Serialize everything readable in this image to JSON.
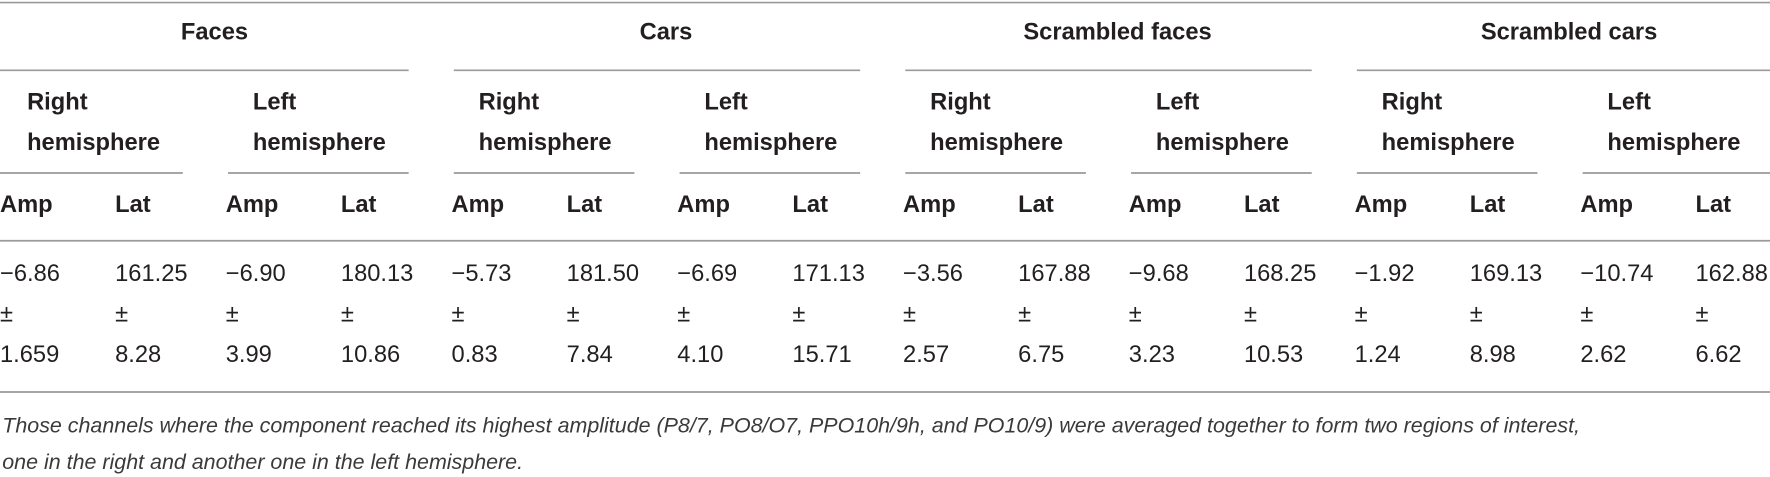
{
  "table": {
    "groups": [
      {
        "name": "Faces",
        "hemispheres": [
          {
            "label_lines": [
              "Right",
              "hemisphere"
            ],
            "columns": [
              "Amp",
              "Lat"
            ],
            "cells": [
              {
                "mean": "−6.86",
                "pm": "±",
                "sd": "1.659"
              },
              {
                "mean": "161.25",
                "pm": "±",
                "sd": "8.28"
              }
            ]
          },
          {
            "label_lines": [
              "Left",
              "hemisphere"
            ],
            "columns": [
              "Amp",
              "Lat"
            ],
            "cells": [
              {
                "mean": "−6.90",
                "pm": "±",
                "sd": "3.99"
              },
              {
                "mean": "180.13",
                "pm": "±",
                "sd": "10.86"
              }
            ]
          }
        ]
      },
      {
        "name": "Cars",
        "hemispheres": [
          {
            "label_lines": [
              "Right",
              "hemisphere"
            ],
            "columns": [
              "Amp",
              "Lat"
            ],
            "cells": [
              {
                "mean": "−5.73",
                "pm": "±",
                "sd": "0.83"
              },
              {
                "mean": "181.50",
                "pm": "±",
                "sd": "7.84"
              }
            ]
          },
          {
            "label_lines": [
              "Left",
              "hemisphere"
            ],
            "columns": [
              "Amp",
              "Lat"
            ],
            "cells": [
              {
                "mean": "−6.69",
                "pm": "±",
                "sd": "4.10"
              },
              {
                "mean": "171.13",
                "pm": "±",
                "sd": "15.71"
              }
            ]
          }
        ]
      },
      {
        "name": "Scrambled faces",
        "hemispheres": [
          {
            "label_lines": [
              "Right",
              "hemisphere"
            ],
            "columns": [
              "Amp",
              "Lat"
            ],
            "cells": [
              {
                "mean": "−3.56",
                "pm": "±",
                "sd": "2.57"
              },
              {
                "mean": "167.88",
                "pm": "±",
                "sd": "6.75"
              }
            ]
          },
          {
            "label_lines": [
              "Left",
              "hemisphere"
            ],
            "columns": [
              "Amp",
              "Lat"
            ],
            "cells": [
              {
                "mean": "−9.68",
                "pm": "±",
                "sd": "3.23"
              },
              {
                "mean": "168.25",
                "pm": "±",
                "sd": "10.53"
              }
            ]
          }
        ]
      },
      {
        "name": "Scrambled cars",
        "hemispheres": [
          {
            "label_lines": [
              "Right",
              "hemisphere"
            ],
            "columns": [
              "Amp",
              "Lat"
            ],
            "cells": [
              {
                "mean": "−1.92",
                "pm": "±",
                "sd": "1.24"
              },
              {
                "mean": "169.13",
                "pm": "±",
                "sd": "8.98"
              }
            ]
          },
          {
            "label_lines": [
              "Left",
              "hemisphere"
            ],
            "columns": [
              "Amp",
              "Lat"
            ],
            "cells": [
              {
                "mean": "−10.74",
                "pm": "±",
                "sd": "2.62"
              },
              {
                "mean": "162.88",
                "pm": "±",
                "sd": "6.62"
              }
            ]
          }
        ]
      }
    ],
    "footnote_lines": [
      "Those channels where the component reached its highest amplitude (P8/7, PO8/O7, PPO10h/9h, and PO10/9) were averaged together to form two regions of interest,",
      "one in the right and another one in the left hemisphere."
    ]
  }
}
